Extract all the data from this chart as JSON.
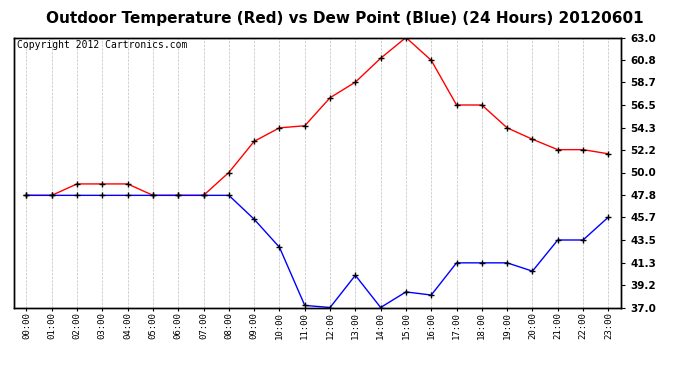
{
  "title": "Outdoor Temperature (Red) vs Dew Point (Blue) (24 Hours) 20120601",
  "copyright": "Copyright 2012 Cartronics.com",
  "hours": [
    0,
    1,
    2,
    3,
    4,
    5,
    6,
    7,
    8,
    9,
    10,
    11,
    12,
    13,
    14,
    15,
    16,
    17,
    18,
    19,
    20,
    21,
    22,
    23
  ],
  "hour_labels": [
    "00:00",
    "01:00",
    "02:00",
    "03:00",
    "04:00",
    "05:00",
    "06:00",
    "07:00",
    "08:00",
    "09:00",
    "10:00",
    "11:00",
    "12:00",
    "13:00",
    "14:00",
    "15:00",
    "16:00",
    "17:00",
    "18:00",
    "19:00",
    "20:00",
    "21:00",
    "22:00",
    "23:00"
  ],
  "temp_red": [
    47.8,
    47.8,
    48.9,
    48.9,
    48.9,
    47.8,
    47.8,
    47.8,
    50.0,
    53.0,
    54.3,
    54.5,
    57.2,
    58.7,
    61.0,
    63.0,
    60.8,
    56.5,
    56.5,
    54.3,
    53.2,
    52.2,
    52.2,
    51.8
  ],
  "dew_blue": [
    47.8,
    47.8,
    47.8,
    47.8,
    47.8,
    47.8,
    47.8,
    47.8,
    47.8,
    45.5,
    42.8,
    37.2,
    37.0,
    40.1,
    37.0,
    38.5,
    38.2,
    41.3,
    41.3,
    41.3,
    40.5,
    43.5,
    43.5,
    45.7
  ],
  "ylim": [
    37.0,
    63.0
  ],
  "yticks": [
    37.0,
    39.2,
    41.3,
    43.5,
    45.7,
    47.8,
    50.0,
    52.2,
    54.3,
    56.5,
    58.7,
    60.8,
    63.0
  ],
  "red_color": "#ff0000",
  "blue_color": "#0000ff",
  "grid_color": "#c0c0c0",
  "bg_color": "#ffffff",
  "title_fontsize": 11,
  "copyright_fontsize": 7
}
